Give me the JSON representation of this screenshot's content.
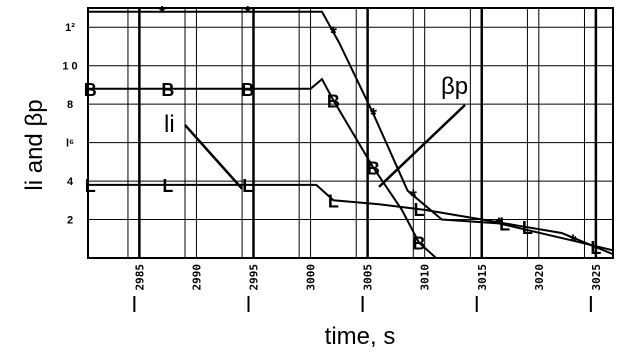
{
  "chart_data": {
    "type": "line",
    "xlabel": "time, s",
    "ylabel": "li and βp",
    "xlim": [
      2980.5,
      3026.5
    ],
    "ylim": [
      0,
      13
    ],
    "x_ticks": [
      "2985",
      "2990",
      "2995",
      "3000",
      "3005",
      "3010",
      "3015",
      "3020",
      "3025"
    ],
    "y_tick_labels": [
      {
        "label": "1²",
        "value": 12
      },
      {
        "label": "1 0",
        "value": 10
      },
      {
        "label": "8",
        "value": 8
      },
      {
        "label": "l⁶",
        "value": 6
      },
      {
        "label": "4",
        "value": 4
      },
      {
        "label": "2",
        "value": 2
      }
    ],
    "annotations": [
      {
        "text": "li",
        "points_to": [
          2994,
          3.6
        ]
      },
      {
        "text": "βp",
        "points_to": [
          3006,
          3.7
        ]
      }
    ],
    "series": [
      {
        "marker": "*",
        "points": [
          [
            2980.5,
            12.8
          ],
          [
            2987,
            12.8
          ],
          [
            2994.5,
            12.8
          ],
          [
            3001,
            12.8
          ],
          [
            3002.5,
            11.2
          ],
          [
            3005.5,
            7.5
          ],
          [
            3008.5,
            3.5
          ],
          [
            3011.5,
            2.0
          ],
          [
            3016.5,
            1.8
          ],
          [
            3023,
            0.9
          ],
          [
            3026.5,
            0.4
          ]
        ],
        "marker_x": [
          2987,
          2994.5,
          3002,
          3005.5,
          3009,
          3016.5,
          3023
        ]
      },
      {
        "marker": "B",
        "points": [
          [
            2980.5,
            8.8
          ],
          [
            2987.5,
            8.8
          ],
          [
            2994.5,
            8.8
          ],
          [
            3000,
            8.8
          ],
          [
            3001,
            9.3
          ],
          [
            3002,
            8.2
          ],
          [
            3005.5,
            4.7
          ],
          [
            3008,
            2.5
          ],
          [
            3009.5,
            0.8
          ],
          [
            3011,
            0.0
          ]
        ],
        "marker_x": [
          2980.7,
          2987.5,
          2994.5,
          3002,
          3005.5,
          3009.5
        ]
      },
      {
        "marker": "L",
        "points": [
          [
            2980.5,
            3.8
          ],
          [
            2987.5,
            3.8
          ],
          [
            2994.5,
            3.8
          ],
          [
            3000.5,
            3.8
          ],
          [
            3002,
            3.0
          ],
          [
            3006,
            2.8
          ],
          [
            3010,
            2.5
          ],
          [
            3015,
            2.0
          ],
          [
            3018,
            1.7
          ],
          [
            3022,
            1.3
          ],
          [
            3026.5,
            0.2
          ]
        ],
        "marker_x": [
          2980.7,
          2987.5,
          2994.5,
          3002,
          3009.5,
          3017,
          3019,
          3025
        ]
      }
    ],
    "grid": true,
    "legend": "none"
  }
}
